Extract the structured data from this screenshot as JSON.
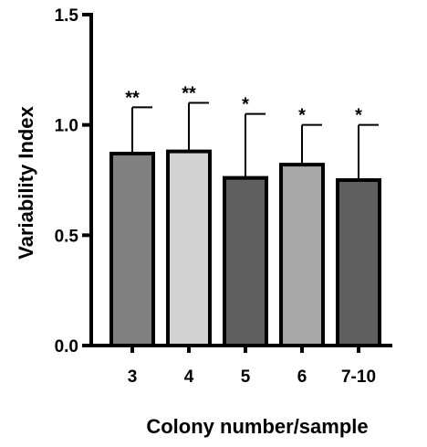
{
  "chart_data": {
    "type": "bar",
    "xlabel": "Colony number/sample",
    "ylabel": "Variability Index",
    "ylim": [
      0,
      1.5
    ],
    "yticks": [
      "0.0",
      "0.5",
      "1.0",
      "1.5"
    ],
    "yticks_values": [
      0,
      0.5,
      1.0,
      1.5
    ],
    "categories": [
      "3",
      "4",
      "5",
      "6",
      "7-10"
    ],
    "values": [
      0.87,
      0.88,
      0.76,
      0.82,
      0.75
    ],
    "error_upper": [
      1.08,
      1.1,
      1.05,
      1.0,
      1.0
    ],
    "significance": [
      "**",
      "**",
      "*",
      "*",
      "*"
    ],
    "bar_colors": [
      "#808080",
      "#d3d3d3",
      "#5f5f5f",
      "#a8a8a8",
      "#5f5f5f"
    ],
    "grid": false,
    "legend": "none"
  }
}
